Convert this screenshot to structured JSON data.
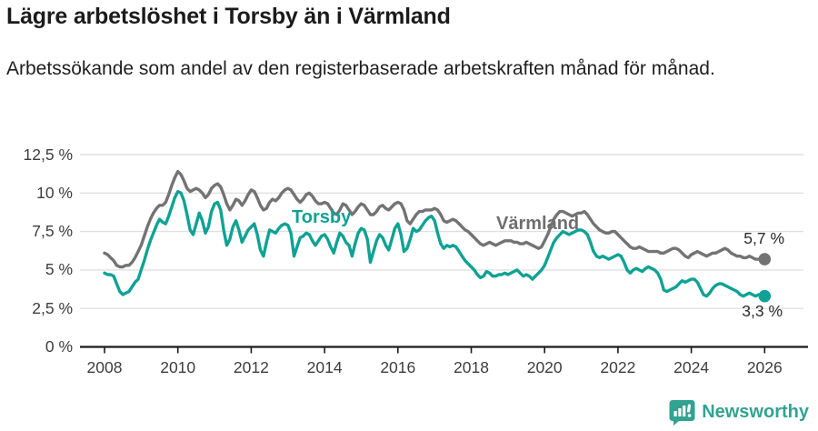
{
  "header": {
    "title": "Lägre arbetslöshet i Torsby än i Värmland",
    "subtitle": "Arbetssökande som andel av den registerbaserade arbetskraften månad för månad."
  },
  "chart_data": {
    "type": "line",
    "title": "Lägre arbetslöshet i Torsby än i Värmland",
    "subtitle": "Arbetssökande som andel av den registerbaserade arbetskraften månad för månad.",
    "xlabel": "",
    "ylabel": "",
    "frequency": "monthly",
    "x_start": "2008-01",
    "x_end": "2026-01",
    "ylim": [
      0,
      12.5
    ],
    "xlim": [
      2007.3,
      2027.1
    ],
    "grid": "horizontal",
    "legend_position": "inline-labels",
    "yticks": [
      {
        "value": 0,
        "label": "0 %"
      },
      {
        "value": 2.5,
        "label": "2,5 %"
      },
      {
        "value": 5,
        "label": "5 %"
      },
      {
        "value": 7.5,
        "label": "7,5 %"
      },
      {
        "value": 10,
        "label": "10 %"
      },
      {
        "value": 12.5,
        "label": "12,5 %"
      }
    ],
    "xticks": [
      {
        "value": 2008,
        "label": "2008"
      },
      {
        "value": 2010,
        "label": "2010"
      },
      {
        "value": 2012,
        "label": "2012"
      },
      {
        "value": 2014,
        "label": "2014"
      },
      {
        "value": 2016,
        "label": "2016"
      },
      {
        "value": 2018,
        "label": "2018"
      },
      {
        "value": 2020,
        "label": "2020"
      },
      {
        "value": 2022,
        "label": "2022"
      },
      {
        "value": 2024,
        "label": "2024"
      },
      {
        "value": 2026,
        "label": "2026"
      }
    ],
    "series": [
      {
        "name": "Värmland",
        "color": "#737373",
        "end_label": "5,7 %",
        "last_value": 5.7,
        "values": [
          6.1,
          6.0,
          5.8,
          5.6,
          5.3,
          5.2,
          5.2,
          5.3,
          5.3,
          5.5,
          5.8,
          6.2,
          6.6,
          7.2,
          7.8,
          8.3,
          8.7,
          9.0,
          9.2,
          9.2,
          9.4,
          9.9,
          10.5,
          11.0,
          11.4,
          11.2,
          10.8,
          10.3,
          10.1,
          10.2,
          10.3,
          10.2,
          10.0,
          9.7,
          9.9,
          10.3,
          10.5,
          10.6,
          10.4,
          9.9,
          9.3,
          8.9,
          9.2,
          9.6,
          9.5,
          9.2,
          9.5,
          9.9,
          10.2,
          10.1,
          9.7,
          9.2,
          8.9,
          9.0,
          9.4,
          9.6,
          9.5,
          9.7,
          10.0,
          10.2,
          10.3,
          10.2,
          9.9,
          9.6,
          9.4,
          9.6,
          9.9,
          10.0,
          9.8,
          9.5,
          9.3,
          9.3,
          9.4,
          9.3,
          9.0,
          8.7,
          8.6,
          8.9,
          9.3,
          9.2,
          8.9,
          8.6,
          8.8,
          9.1,
          9.3,
          9.2,
          8.9,
          8.6,
          8.6,
          8.8,
          9.1,
          9.2,
          9.0,
          8.9,
          9.1,
          9.3,
          9.4,
          9.3,
          8.9,
          8.2,
          8.0,
          8.3,
          8.6,
          8.8,
          8.8,
          8.9,
          8.9,
          8.9,
          9.0,
          8.9,
          8.6,
          8.2,
          8.1,
          8.2,
          8.3,
          8.2,
          8.0,
          7.8,
          7.6,
          7.5,
          7.3,
          7.1,
          6.9,
          6.7,
          6.6,
          6.7,
          6.8,
          6.7,
          6.6,
          6.7,
          6.8,
          6.9,
          6.9,
          6.9,
          6.8,
          6.8,
          6.7,
          6.7,
          6.8,
          6.7,
          6.6,
          6.5,
          6.4,
          6.5,
          6.9,
          7.3,
          7.8,
          8.3,
          8.6,
          8.8,
          8.8,
          8.7,
          8.6,
          8.5,
          8.6,
          8.7,
          8.7,
          8.8,
          8.6,
          8.3,
          8.0,
          7.8,
          7.6,
          7.5,
          7.4,
          7.4,
          7.5,
          7.5,
          7.3,
          7.1,
          6.9,
          6.7,
          6.5,
          6.4,
          6.4,
          6.5,
          6.4,
          6.3,
          6.2,
          6.2,
          6.2,
          6.2,
          6.1,
          6.1,
          6.2,
          6.3,
          6.4,
          6.4,
          6.3,
          6.1,
          5.9,
          5.8,
          6.0,
          6.1,
          6.2,
          6.1,
          6.0,
          5.9,
          6.0,
          6.1,
          6.1,
          6.2,
          6.3,
          6.4,
          6.3,
          6.1,
          6.0,
          5.9,
          5.9,
          5.8,
          5.8,
          5.9,
          5.8,
          5.7,
          5.7,
          5.7,
          5.7
        ]
      },
      {
        "name": "Torsby",
        "color": "#0fa294",
        "end_label": "3,3 %",
        "last_value": 3.3,
        "values": [
          4.8,
          4.7,
          4.7,
          4.6,
          4.1,
          3.6,
          3.4,
          3.5,
          3.6,
          3.9,
          4.2,
          4.4,
          5.0,
          5.6,
          6.3,
          6.9,
          7.4,
          7.9,
          8.3,
          8.1,
          8.0,
          8.5,
          9.1,
          9.7,
          10.1,
          10.0,
          9.5,
          8.6,
          7.6,
          7.3,
          8.0,
          8.7,
          8.2,
          7.4,
          7.8,
          8.8,
          9.3,
          9.4,
          8.9,
          7.6,
          6.6,
          7.0,
          7.8,
          8.2,
          7.6,
          6.8,
          7.2,
          7.6,
          7.8,
          8.0,
          7.3,
          6.3,
          5.9,
          6.8,
          7.6,
          7.5,
          7.4,
          7.7,
          7.9,
          8.0,
          7.9,
          7.4,
          5.9,
          6.5,
          7.1,
          7.2,
          7.4,
          7.3,
          6.9,
          6.6,
          6.9,
          7.2,
          7.3,
          7.0,
          6.5,
          6.1,
          6.8,
          7.4,
          7.2,
          6.8,
          6.6,
          5.9,
          6.7,
          7.4,
          7.7,
          7.6,
          7.0,
          5.5,
          6.2,
          6.9,
          7.3,
          7.1,
          6.6,
          6.3,
          7.0,
          7.7,
          8.0,
          7.3,
          6.2,
          6.4,
          7.0,
          7.7,
          7.5,
          7.6,
          7.9,
          8.2,
          8.4,
          8.5,
          8.2,
          7.4,
          6.7,
          6.4,
          6.6,
          6.5,
          6.6,
          6.5,
          6.2,
          5.9,
          5.6,
          5.4,
          5.2,
          5.0,
          4.7,
          4.5,
          4.6,
          4.9,
          4.8,
          4.6,
          4.6,
          4.7,
          4.7,
          4.8,
          4.7,
          4.8,
          4.9,
          5.0,
          4.8,
          4.6,
          4.7,
          4.6,
          4.4,
          4.6,
          4.8,
          5.0,
          5.3,
          5.8,
          6.3,
          6.8,
          7.1,
          7.3,
          7.5,
          7.4,
          7.3,
          7.4,
          7.5,
          7.6,
          7.6,
          7.5,
          7.3,
          6.8,
          6.2,
          5.9,
          5.8,
          5.9,
          5.8,
          5.7,
          5.8,
          5.9,
          6.0,
          5.9,
          5.5,
          5.0,
          4.8,
          5.0,
          5.1,
          5.0,
          4.9,
          5.1,
          5.2,
          5.1,
          5.0,
          4.8,
          4.4,
          3.7,
          3.6,
          3.7,
          3.8,
          3.9,
          4.1,
          4.3,
          4.2,
          4.3,
          4.4,
          4.4,
          4.2,
          3.8,
          3.4,
          3.3,
          3.5,
          3.8,
          4.0,
          4.1,
          4.1,
          4.0,
          3.9,
          3.8,
          3.7,
          3.6,
          3.4,
          3.3,
          3.4,
          3.5,
          3.4,
          3.3,
          3.4,
          3.3,
          3.3
        ]
      }
    ]
  },
  "annotations": {
    "torsby_label": "Torsby",
    "varmland_label": "Värmland",
    "varmland_end_value": "5,7 %",
    "torsby_end_value": "3,3 %"
  },
  "footer": {
    "brand": "Newsworthy",
    "brand_color": "#31a391"
  },
  "colors": {
    "torsby": "#0fa294",
    "varmland": "#737373",
    "gridline": "#e0e0e0",
    "axis": "#1a1a1a",
    "text": "#1b1b1b"
  }
}
